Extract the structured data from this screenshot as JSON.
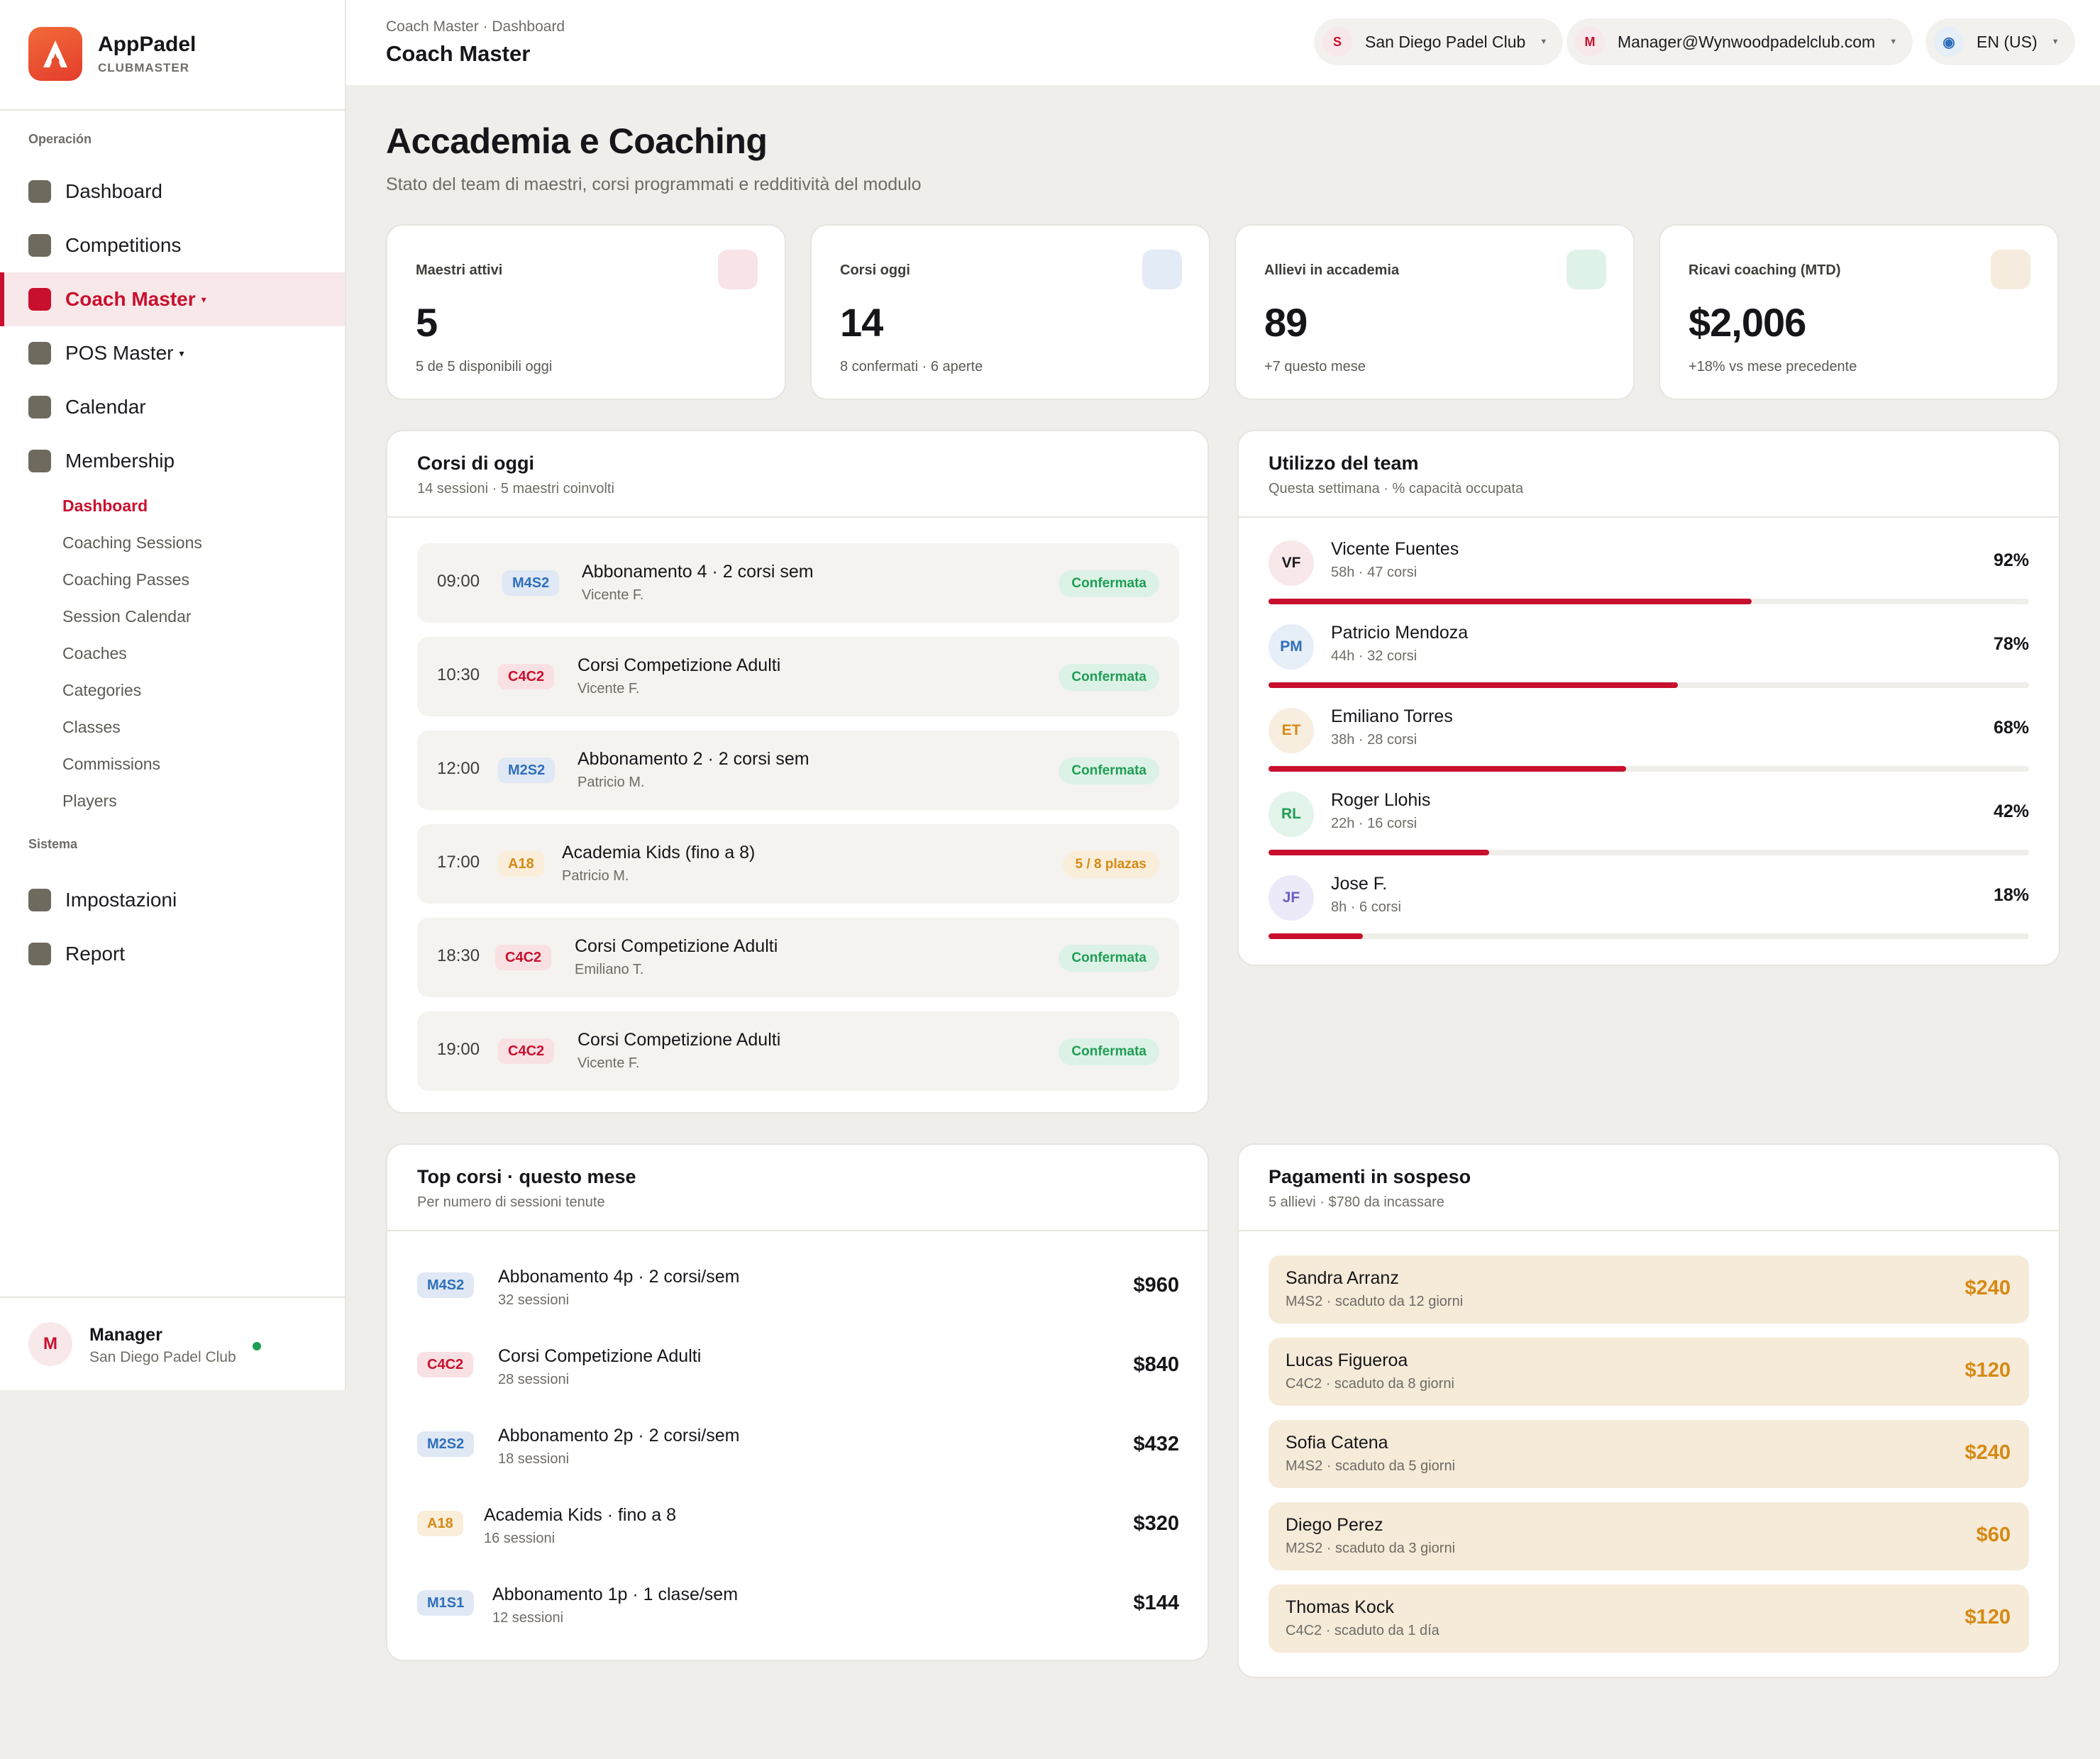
{
  "brand": {
    "name": "AppPadel",
    "sub": "CLUBMASTER",
    "logo_color": "#e8492f"
  },
  "sidebar": {
    "section_operacion": "Operación",
    "section_sistema": "Sistema",
    "items": [
      {
        "label": "Dashboard"
      },
      {
        "label": "Competitions"
      },
      {
        "label": "Coach Master",
        "caret": "▾",
        "active": true
      },
      {
        "label": "POS Master",
        "caret": "▾"
      },
      {
        "label": "Calendar"
      },
      {
        "label": "Membership"
      }
    ],
    "subitems": [
      {
        "label": "Dashboard",
        "active": true
      },
      {
        "label": "Coaching Sessions"
      },
      {
        "label": "Coaching Passes"
      },
      {
        "label": "Session Calendar"
      },
      {
        "label": "Coaches"
      },
      {
        "label": "Categories"
      },
      {
        "label": "Classes"
      },
      {
        "label": "Commissions"
      },
      {
        "label": "Players"
      }
    ],
    "system_items": [
      {
        "label": "Impostazioni"
      },
      {
        "label": "Report"
      }
    ],
    "user": {
      "initial": "M",
      "name": "Manager",
      "club": "San Diego Padel Club",
      "status_color": "#1f9d55"
    }
  },
  "topbar": {
    "breadcrumb": "Coach Master · Dashboard",
    "title": "Coach Master",
    "club": {
      "initial": "S",
      "label": "San Diego Padel Club"
    },
    "account": {
      "initial": "M",
      "label": "Manager@Wynwoodpadelclub.com"
    },
    "language": {
      "icon": "globe-icon",
      "label": "EN (US)"
    }
  },
  "page": {
    "title": "Accademia e Coaching",
    "subtitle": "Stato del team di maestri, corsi programmati e redditività del modulo"
  },
  "stats": [
    {
      "label": "Maestri attivi",
      "value": "5",
      "note": "5 de 5 disponibili oggi",
      "icon_color": "#f8e3e6"
    },
    {
      "label": "Corsi oggi",
      "value": "14",
      "note": "8 confermati · 6 aperte",
      "icon_color": "#e3ebf6"
    },
    {
      "label": "Allievi in accademia",
      "value": "89",
      "note": "+7 questo mese",
      "icon_color": "#dff2e8"
    },
    {
      "label": "Ricavi coaching (MTD)",
      "value": "$2,006",
      "note": "+18% vs mese precedente",
      "icon_color": "#f6ecdd"
    }
  ],
  "today_courses": {
    "title": "Corsi di oggi",
    "subtitle": "14 sessioni · 5 maestri coinvolti",
    "rows": [
      {
        "time": "09:00",
        "code": "M4S2",
        "code_color": "blue",
        "name": "Abbonamento 4 · 2 corsi sem",
        "coach": "Vicente F.",
        "status": "Confermata",
        "status_type": "ok"
      },
      {
        "time": "10:30",
        "code": "C4C2",
        "code_color": "red",
        "name": "Corsi Competizione Adulti",
        "coach": "Vicente F.",
        "status": "Confermata",
        "status_type": "ok"
      },
      {
        "time": "12:00",
        "code": "M2S2",
        "code_color": "blue",
        "name": "Abbonamento 2 · 2 corsi sem",
        "coach": "Patricio M.",
        "status": "Confermata",
        "status_type": "ok"
      },
      {
        "time": "17:00",
        "code": "A18",
        "code_color": "amber",
        "name": "Academia Kids (fino a 8)",
        "coach": "Patricio M.",
        "status": "5 / 8 plazas",
        "status_type": "warn"
      },
      {
        "time": "18:30",
        "code": "C4C2",
        "code_color": "red",
        "name": "Corsi Competizione Adulti",
        "coach": "Emiliano T.",
        "status": "Confermata",
        "status_type": "ok"
      },
      {
        "time": "19:00",
        "code": "C4C2",
        "code_color": "red",
        "name": "Corsi Competizione Adulti",
        "coach": "Vicente F.",
        "status": "Confermata",
        "status_type": "ok"
      }
    ]
  },
  "team_utilization": {
    "title": "Utilizzo del team",
    "subtitle": "Questa settimana · % capacità occupata",
    "bar_color": "#c8102e",
    "rows": [
      {
        "initials": "VF",
        "name": "Vicente Fuentes",
        "meta": "58h · 47 corsi",
        "pct_label": "92%",
        "fill_fraction": 0.635,
        "avatar_bg": "#f8e8ea",
        "avatar_fg": "#1c1c20"
      },
      {
        "initials": "PM",
        "name": "Patricio Mendoza",
        "meta": "44h · 32 corsi",
        "pct_label": "78%",
        "fill_fraction": 0.538,
        "avatar_bg": "#e6eef8",
        "avatar_fg": "#2f6fba"
      },
      {
        "initials": "ET",
        "name": "Emiliano Torres",
        "meta": "38h · 28 corsi",
        "pct_label": "68%",
        "fill_fraction": 0.47,
        "avatar_bg": "#f8eee0",
        "avatar_fg": "#d58a14"
      },
      {
        "initials": "RL",
        "name": "Roger Llohis",
        "meta": "22h · 16 corsi",
        "pct_label": "42%",
        "fill_fraction": 0.29,
        "avatar_bg": "#e3f4ea",
        "avatar_fg": "#1f9d55"
      },
      {
        "initials": "JF",
        "name": "Jose F.",
        "meta": "8h · 6 corsi",
        "pct_label": "18%",
        "fill_fraction": 0.124,
        "avatar_bg": "#eceaf8",
        "avatar_fg": "#6b5fc4"
      }
    ]
  },
  "top_courses": {
    "title": "Top corsi · questo mese",
    "subtitle": "Per numero di sessioni tenute",
    "rows": [
      {
        "code": "M4S2",
        "code_color": "blue",
        "name": "Abbonamento 4p · 2 corsi/sem",
        "sessions": "32 sessioni",
        "amount": "$960"
      },
      {
        "code": "C4C2",
        "code_color": "red",
        "name": "Corsi Competizione Adulti",
        "sessions": "28 sessioni",
        "amount": "$840"
      },
      {
        "code": "M2S2",
        "code_color": "blue",
        "name": "Abbonamento 2p · 2 corsi/sem",
        "sessions": "18 sessioni",
        "amount": "$432"
      },
      {
        "code": "A18",
        "code_color": "amber",
        "name": "Academia Kids · fino a 8",
        "sessions": "16 sessioni",
        "amount": "$320"
      },
      {
        "code": "M1S1",
        "code_color": "blue",
        "name": "Abbonamento 1p · 1 clase/sem",
        "sessions": "12 sessioni",
        "amount": "$144"
      }
    ]
  },
  "pending_payments": {
    "title": "Pagamenti in sospeso",
    "subtitle": "5 allievi · $780 da incassare",
    "rows": [
      {
        "name": "Sandra Arranz",
        "meta": "M4S2 · scaduto da 12 giorni",
        "amount": "$240"
      },
      {
        "name": "Lucas Figueroa",
        "meta": "C4C2 · scaduto da 8 giorni",
        "amount": "$120"
      },
      {
        "name": "Sofia Catena",
        "meta": "M4S2 · scaduto da 5 giorni",
        "amount": "$240"
      },
      {
        "name": "Diego Perez",
        "meta": "M2S2 · scaduto da 3 giorni",
        "amount": "$60"
      },
      {
        "name": "Thomas Kock",
        "meta": "C4C2 · scaduto da 1 día",
        "amount": "$120"
      }
    ]
  }
}
